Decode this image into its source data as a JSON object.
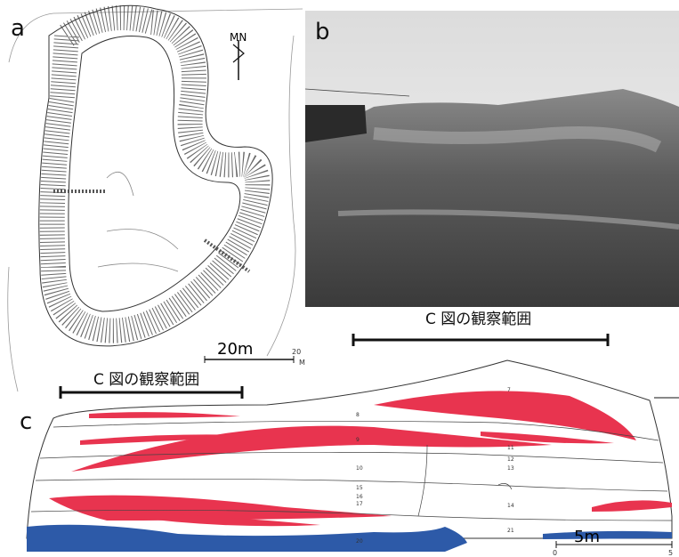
{
  "panel_a": {
    "label": "a",
    "north": "MN",
    "scale_label": "20m",
    "scale_end": "20",
    "scale_unit": "M",
    "caption": "C 図の観察範囲"
  },
  "panel_b": {
    "label": "b",
    "caption": "C 図の観察範囲"
  },
  "panel_c": {
    "label": "c",
    "scale_label": "5m",
    "scale_start": "0",
    "scale_end": "5",
    "layers": [
      "7",
      "8",
      "9",
      "10",
      "11",
      "12",
      "13",
      "14",
      "15",
      "16",
      "17",
      "20",
      "21"
    ]
  }
}
